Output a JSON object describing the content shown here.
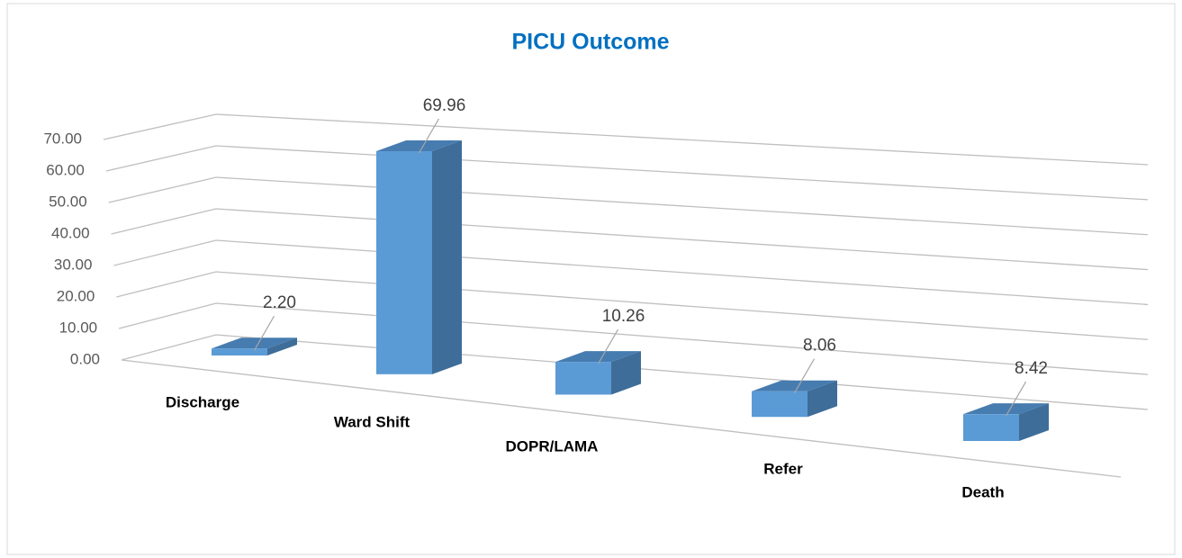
{
  "chart_data": {
    "type": "bar3d",
    "title": "PICU Outcome",
    "categories": [
      "Discharge",
      "Ward Shift",
      "DOPR/LAMA",
      "Refer",
      "Death"
    ],
    "values": [
      2.2,
      69.96,
      10.26,
      8.06,
      8.42
    ],
    "value_labels": [
      "2.20",
      "69.96",
      "10.26",
      "8.06",
      "8.42"
    ],
    "color": "#5b9bd5",
    "ylim": [
      0,
      70
    ],
    "yticks": [
      {
        "value": 0,
        "label": "0.00"
      },
      {
        "value": 10,
        "label": "10.00"
      },
      {
        "value": 20,
        "label": "20.00"
      },
      {
        "value": 30,
        "label": "30.00"
      },
      {
        "value": 40,
        "label": "40.00"
      },
      {
        "value": 50,
        "label": "50.00"
      },
      {
        "value": 60,
        "label": "60.00"
      },
      {
        "value": 70,
        "label": "70.00"
      }
    ],
    "grid": true
  }
}
